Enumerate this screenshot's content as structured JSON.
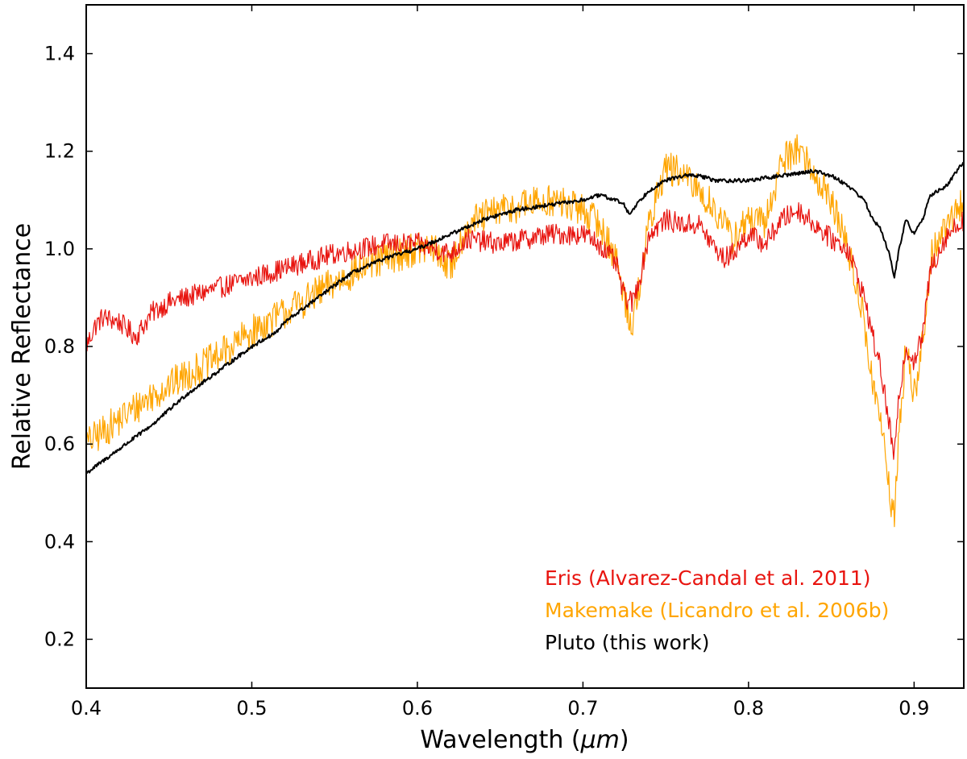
{
  "chart_data": {
    "type": "line",
    "title": "",
    "xlabel_text": "Wavelength (",
    "xlabel_unit": "μm",
    "xlabel_close": ")",
    "ylabel": "Relative Reflectance",
    "xlim": [
      0.4,
      0.93
    ],
    "ylim": [
      0.1,
      1.5
    ],
    "xticks": [
      0.4,
      0.5,
      0.6,
      0.7,
      0.8,
      0.9
    ],
    "xtick_labels": [
      "0.4",
      "0.5",
      "0.6",
      "0.7",
      "0.8",
      "0.9"
    ],
    "yticks": [
      0.2,
      0.4,
      0.6,
      0.8,
      1.0,
      1.2,
      1.4
    ],
    "ytick_labels": [
      "0.2",
      "0.4",
      "0.6",
      "0.8",
      "1.0",
      "1.2",
      "1.4"
    ],
    "grid": false,
    "legend_position": "bottom-right",
    "series": [
      {
        "name": "Eris (Alvarez-Candal et al. 2011)",
        "color": "#e8140f",
        "noise": 0.022,
        "x": [
          0.4,
          0.405,
          0.41,
          0.42,
          0.43,
          0.44,
          0.45,
          0.47,
          0.5,
          0.52,
          0.55,
          0.58,
          0.6,
          0.62,
          0.63,
          0.65,
          0.68,
          0.7,
          0.71,
          0.72,
          0.725,
          0.73,
          0.735,
          0.74,
          0.75,
          0.76,
          0.77,
          0.78,
          0.785,
          0.79,
          0.8,
          0.81,
          0.82,
          0.83,
          0.84,
          0.85,
          0.86,
          0.87,
          0.875,
          0.88,
          0.885,
          0.888,
          0.891,
          0.895,
          0.9,
          0.905,
          0.91,
          0.92,
          0.93
        ],
        "y": [
          0.8,
          0.84,
          0.86,
          0.85,
          0.82,
          0.87,
          0.89,
          0.91,
          0.94,
          0.96,
          0.99,
          1.01,
          1.01,
          0.99,
          1.02,
          1.01,
          1.03,
          1.03,
          1.01,
          0.97,
          0.9,
          0.89,
          0.95,
          1.03,
          1.06,
          1.05,
          1.05,
          1.0,
          0.98,
          0.99,
          1.03,
          1.01,
          1.06,
          1.08,
          1.05,
          1.02,
          1.0,
          0.9,
          0.82,
          0.75,
          0.64,
          0.57,
          0.7,
          0.8,
          0.77,
          0.82,
          0.96,
          1.03,
          1.06
        ]
      },
      {
        "name": "Makemake (Licandro et al. 2006b)",
        "color": "#ffa500",
        "noise": 0.035,
        "x": [
          0.4,
          0.42,
          0.44,
          0.46,
          0.48,
          0.5,
          0.52,
          0.54,
          0.56,
          0.58,
          0.6,
          0.61,
          0.62,
          0.63,
          0.65,
          0.68,
          0.7,
          0.71,
          0.72,
          0.725,
          0.73,
          0.735,
          0.74,
          0.75,
          0.76,
          0.77,
          0.78,
          0.79,
          0.8,
          0.81,
          0.82,
          0.83,
          0.84,
          0.85,
          0.86,
          0.87,
          0.875,
          0.88,
          0.885,
          0.888,
          0.891,
          0.895,
          0.9,
          0.905,
          0.91,
          0.92,
          0.93
        ],
        "y": [
          0.6,
          0.65,
          0.7,
          0.74,
          0.78,
          0.83,
          0.87,
          0.91,
          0.95,
          0.98,
          1.0,
          1.0,
          0.96,
          1.05,
          1.08,
          1.1,
          1.08,
          1.05,
          0.98,
          0.9,
          0.84,
          0.95,
          1.05,
          1.17,
          1.15,
          1.12,
          1.08,
          1.02,
          1.06,
          1.05,
          1.18,
          1.21,
          1.15,
          1.1,
          1.0,
          0.85,
          0.72,
          0.65,
          0.5,
          0.45,
          0.62,
          0.8,
          0.7,
          0.8,
          0.98,
          1.05,
          1.1
        ]
      },
      {
        "name": "Pluto (this work)",
        "color": "#000000",
        "noise": 0.004,
        "x": [
          0.4,
          0.42,
          0.44,
          0.46,
          0.48,
          0.5,
          0.515,
          0.52,
          0.54,
          0.56,
          0.58,
          0.6,
          0.62,
          0.64,
          0.66,
          0.68,
          0.7,
          0.71,
          0.72,
          0.725,
          0.728,
          0.732,
          0.74,
          0.75,
          0.76,
          0.77,
          0.78,
          0.8,
          0.82,
          0.84,
          0.85,
          0.86,
          0.87,
          0.875,
          0.88,
          0.885,
          0.888,
          0.891,
          0.895,
          0.9,
          0.905,
          0.91,
          0.92,
          0.93
        ],
        "y": [
          0.54,
          0.59,
          0.64,
          0.7,
          0.75,
          0.8,
          0.83,
          0.85,
          0.9,
          0.95,
          0.98,
          1.0,
          1.03,
          1.06,
          1.08,
          1.09,
          1.1,
          1.11,
          1.1,
          1.09,
          1.07,
          1.09,
          1.12,
          1.14,
          1.15,
          1.15,
          1.14,
          1.14,
          1.15,
          1.16,
          1.15,
          1.13,
          1.1,
          1.06,
          1.04,
          0.99,
          0.94,
          1.0,
          1.06,
          1.03,
          1.06,
          1.11,
          1.13,
          1.18
        ]
      }
    ]
  }
}
